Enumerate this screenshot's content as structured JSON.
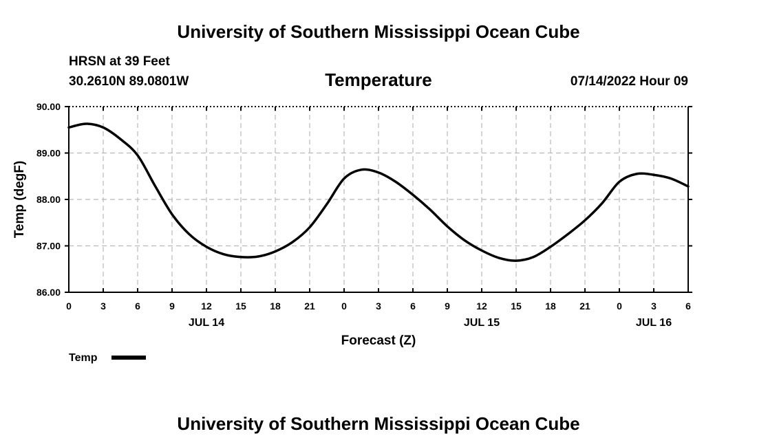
{
  "header": {
    "title": "University of Southern Mississippi Ocean Cube",
    "station": "HRSN at 39 Feet",
    "location": "30.2610N  89.0801W",
    "datetime": "07/14/2022 Hour 09"
  },
  "footer": {
    "title": "University of Southern Mississippi Ocean Cube"
  },
  "chart_data": {
    "type": "line",
    "title": "Temperature",
    "xlabel": "Forecast (Z)",
    "ylabel": "Temp (degF)",
    "xlim": [
      0,
      54
    ],
    "ylim": [
      86,
      90
    ],
    "grid": true,
    "x_ticks": [
      0,
      3,
      6,
      9,
      12,
      15,
      18,
      21,
      24,
      27,
      30,
      33,
      36,
      39,
      42,
      45,
      48,
      51,
      54
    ],
    "x_tick_labels": [
      "0",
      "3",
      "6",
      "9",
      "12",
      "15",
      "18",
      "21",
      "0",
      "3",
      "6",
      "9",
      "12",
      "15",
      "18",
      "21",
      "0",
      "3",
      "6"
    ],
    "y_ticks": [
      86,
      87,
      88,
      89,
      90
    ],
    "y_tick_labels": [
      "86.00",
      "87.00",
      "88.00",
      "89.00",
      "90.00"
    ],
    "day_labels": [
      {
        "label": "JUL 14",
        "hour": 12
      },
      {
        "label": "JUL 15",
        "hour": 36
      },
      {
        "label": "JUL 16",
        "hour": 51
      }
    ],
    "legend": {
      "position": "bottom-left",
      "entries": [
        "Temp"
      ]
    },
    "series": [
      {
        "name": "Temp",
        "color": "#000000",
        "x": [
          0,
          1.5,
          3,
          4.5,
          6,
          7.5,
          9,
          10.5,
          12,
          13.5,
          15,
          16.5,
          18,
          19.5,
          21,
          22.5,
          24,
          25.5,
          27,
          28.5,
          30,
          31.5,
          33,
          34.5,
          36,
          37.5,
          39,
          40.5,
          42,
          43.5,
          45,
          46.5,
          48,
          49.5,
          51,
          52.5,
          54
        ],
        "values": [
          89.55,
          89.63,
          89.55,
          89.3,
          88.95,
          88.3,
          87.68,
          87.25,
          86.98,
          86.82,
          86.76,
          86.77,
          86.88,
          87.08,
          87.4,
          87.9,
          88.45,
          88.64,
          88.58,
          88.38,
          88.1,
          87.78,
          87.42,
          87.12,
          86.9,
          86.74,
          86.68,
          86.76,
          86.98,
          87.25,
          87.55,
          87.92,
          88.38,
          88.55,
          88.53,
          88.45,
          88.28
        ]
      }
    ]
  }
}
